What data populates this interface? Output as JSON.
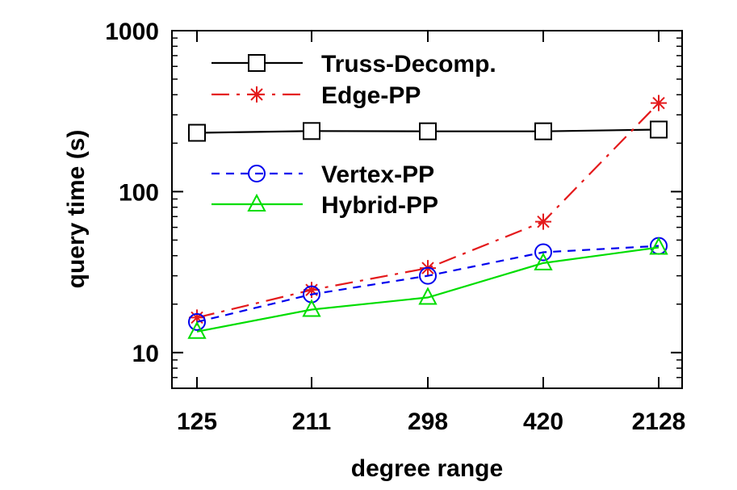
{
  "chart_data": {
    "type": "line",
    "xlabel": "degree range",
    "ylabel": "query time (s)",
    "y_scale": "log",
    "ylim": [
      6,
      1000
    ],
    "y_ticks": [
      "10",
      "100",
      "1000"
    ],
    "categories": [
      "125",
      "211",
      "298",
      "420",
      "2128"
    ],
    "legend_placement": "top-left",
    "series": [
      {
        "name": "Truss-Decomp.",
        "color": "#000000",
        "marker": "square",
        "dash": "solid",
        "values": [
          232,
          238,
          237,
          237,
          243
        ]
      },
      {
        "name": "Edge-PP",
        "color": "#e41a1c",
        "marker": "star",
        "dash": "dashdot",
        "values": [
          16.5,
          24.5,
          33.5,
          65,
          355
        ]
      },
      {
        "name": "Vertex-PP",
        "color": "#0000ee",
        "marker": "circle",
        "dash": "dashed",
        "values": [
          15.5,
          23,
          30,
          42,
          46
        ]
      },
      {
        "name": "Hybrid-PP",
        "color": "#00dd00",
        "marker": "triangle",
        "dash": "solid",
        "values": [
          13.5,
          18.5,
          22,
          36,
          45
        ]
      }
    ]
  }
}
